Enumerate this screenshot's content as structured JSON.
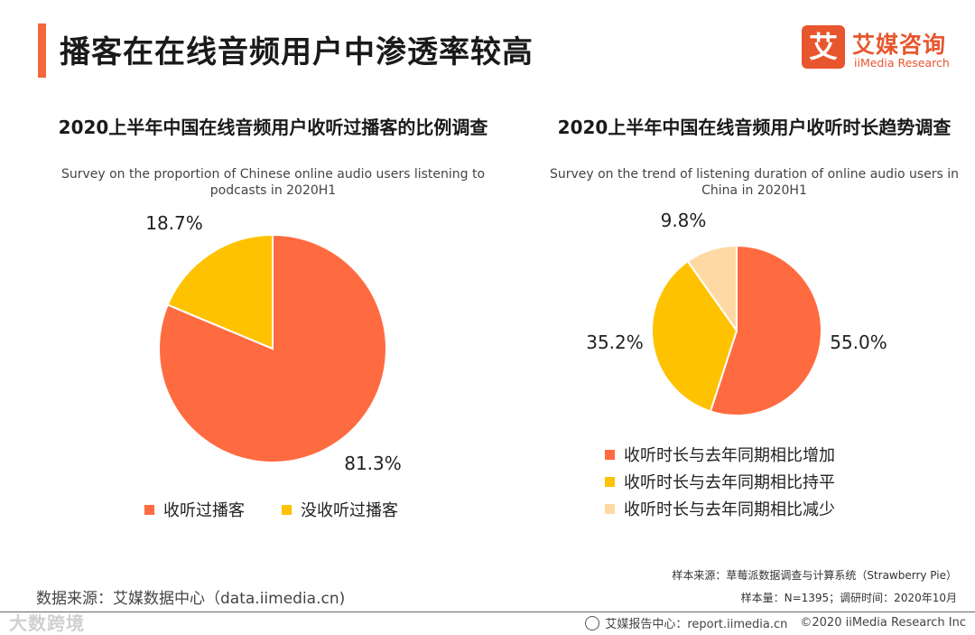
{
  "header": {
    "title": "播客在在线音频用户中渗透率较高",
    "logo_mark": "艾",
    "logo_cn": "艾媒咨询",
    "logo_en": "iiMedia Research"
  },
  "colors": {
    "accent": "#f2683a",
    "orange": "#ff6b40",
    "yellow": "#fec200",
    "light": "#fed9a3"
  },
  "chart_data": [
    {
      "type": "pie",
      "title": "2020上半年中国在线音频用户收听过播客的比例调查",
      "subtitle": "Survey on the proportion of Chinese online audio users listening to podcasts in 2020H1",
      "slices": [
        {
          "name": "收听过播客",
          "value": 81.3,
          "label": "81.3%",
          "color": "#ff6b40"
        },
        {
          "name": "没收听过播客",
          "value": 18.7,
          "label": "18.7%",
          "color": "#fec200"
        }
      ],
      "legend": [
        "收听过播客",
        "没收听过播客"
      ]
    },
    {
      "type": "pie",
      "title": "2020上半年中国在线音频用户收听时长趋势调查",
      "subtitle": "Survey on the trend of listening duration of online audio users in China in 2020H1",
      "slices": [
        {
          "name": "收听时长与去年同期相比增加",
          "value": 55.0,
          "label": "55.0%",
          "color": "#ff6b40"
        },
        {
          "name": "收听时长与去年同期相比持平",
          "value": 35.2,
          "label": "35.2%",
          "color": "#fec200"
        },
        {
          "name": "收听时长与去年同期相比减少",
          "value": 9.8,
          "label": "9.8%",
          "color": "#fed9a3"
        }
      ],
      "legend": [
        "收听时长与去年同期相比增加",
        "收听时长与去年同期相比持平",
        "收听时长与去年同期相比减少"
      ]
    }
  ],
  "footer": {
    "data_source": "数据来源：艾媒数据中心（data.iimedia.cn)",
    "sample_source": "样本来源：草莓派数据调查与计算系统（Strawberry Pie）",
    "sample_size": "样本量：N=1395；调研时间：2020年10月",
    "center": "艾媒报告中心：report.iimedia.cn",
    "copyright": "©2020  iiMedia Research  Inc",
    "watermark": "大数跨境"
  }
}
